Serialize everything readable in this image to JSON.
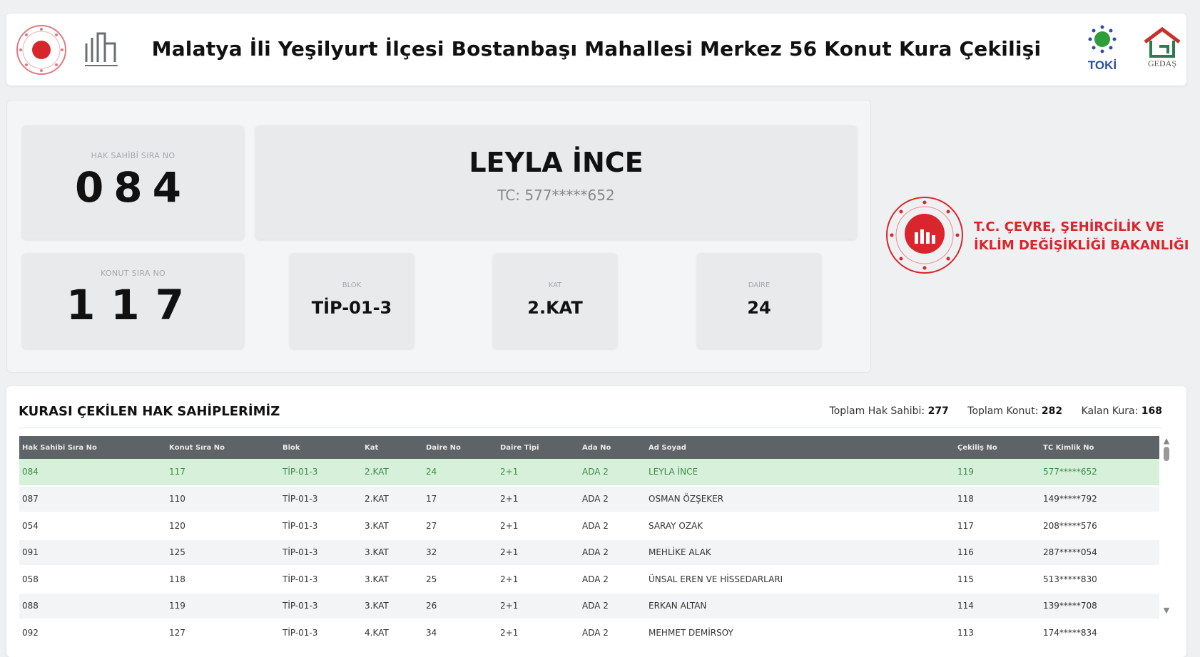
{
  "header": {
    "title": "Malatya İli Yeşilyurt İlçesi Bostanbaşı Mahallesi Merkez 56 Konut Kura Çekilişi",
    "logos": [
      "ministry-seal",
      "building-logo",
      "TOKİ",
      "GEDAŞ"
    ]
  },
  "current": {
    "hak_sahibi_label": "HAK SAHİBİ SIRA NO",
    "hak_sahibi_no": "084",
    "name": "LEYLA İNCE",
    "tc": "TC: 577*****652",
    "konut_label": "KONUT SIRA NO",
    "konut_no": "117",
    "blok_label": "BLOK",
    "blok": "TİP-01-3",
    "kat_label": "KAT",
    "kat": "2.KAT",
    "daire_label": "DAİRE",
    "daire": "24"
  },
  "ministry": {
    "line1": "T.C. ÇEVRE, ŞEHİRCİLİK VE",
    "line2": "İKLİM DEĞİŞİKLİĞİ BAKANLIĞI",
    "accent": "#d9262c"
  },
  "list": {
    "title": "KURASI ÇEKİLEN HAK SAHİPLERİMİZ",
    "stats": {
      "total_owner_label": "Toplam Hak Sahibi:",
      "total_owner": "277",
      "total_housing_label": "Toplam Konut:",
      "total_housing": "282",
      "remaining_label": "Kalan Kura:",
      "remaining": "168"
    },
    "columns": [
      "Hak Sahibi Sıra No",
      "Konut Sıra No",
      "Blok",
      "Kat",
      "Daire No",
      "Daire Tipi",
      "Ada No",
      "Ad Soyad",
      "Çekiliş No",
      "TC Kimlik No"
    ],
    "rows": [
      [
        "084",
        "117",
        "TİP-01-3",
        "2.KAT",
        "24",
        "2+1",
        "ADA 2",
        "LEYLA İNCE",
        "119",
        "577*****652"
      ],
      [
        "087",
        "110",
        "TİP-01-3",
        "2.KAT",
        "17",
        "2+1",
        "ADA 2",
        "OSMAN ÖZŞEKER",
        "118",
        "149*****792"
      ],
      [
        "054",
        "120",
        "TİP-01-3",
        "3.KAT",
        "27",
        "2+1",
        "ADA 2",
        "SARAY OZAK",
        "117",
        "208*****576"
      ],
      [
        "091",
        "125",
        "TİP-01-3",
        "3.KAT",
        "32",
        "2+1",
        "ADA 2",
        "MEHLİKE ALAK",
        "116",
        "287*****054"
      ],
      [
        "058",
        "118",
        "TİP-01-3",
        "3.KAT",
        "25",
        "2+1",
        "ADA 2",
        "ÜNSAL EREN VE HİSSEDARLARI",
        "115",
        "513*****830"
      ],
      [
        "088",
        "119",
        "TİP-01-3",
        "3.KAT",
        "26",
        "2+1",
        "ADA 2",
        "ERKAN ALTAN",
        "114",
        "139*****708"
      ],
      [
        "092",
        "127",
        "TİP-01-3",
        "4.KAT",
        "34",
        "2+1",
        "ADA 2",
        "MEHMET DEMİRSOY",
        "113",
        "174*****834"
      ]
    ],
    "highlight_color": "#d6f0d9"
  }
}
